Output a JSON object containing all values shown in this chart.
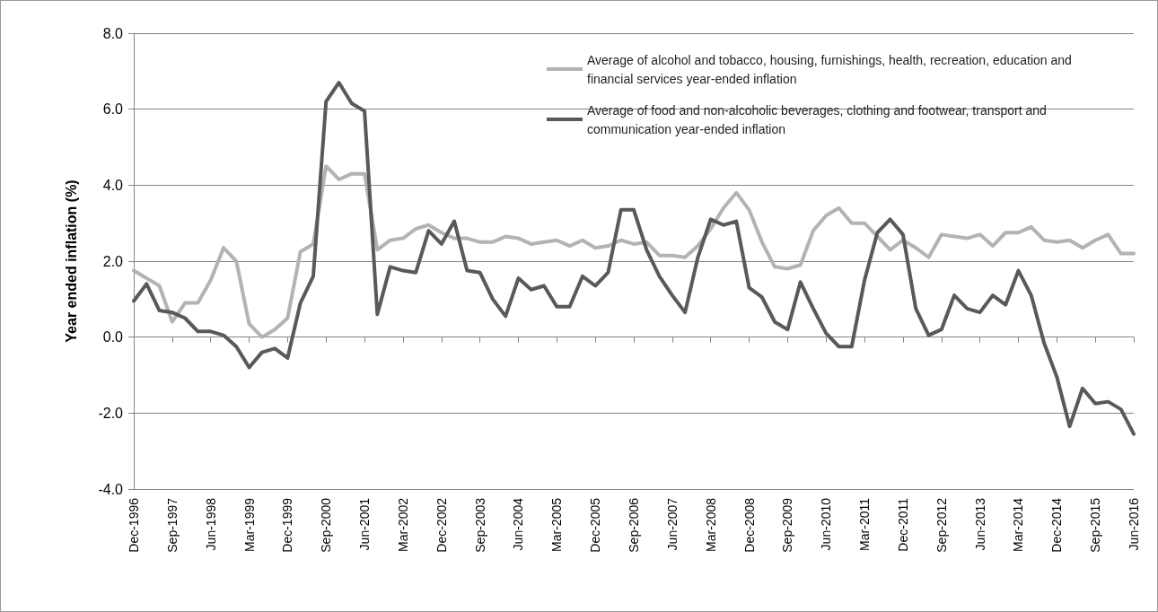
{
  "chart_data": {
    "type": "line",
    "ylabel": "Year ended inflation (%)",
    "categories": [
      "Dec-1996",
      null,
      null,
      "Sep-1997",
      null,
      null,
      "Jun-1998",
      null,
      null,
      "Mar-1999",
      null,
      null,
      "Dec-1999",
      null,
      null,
      "Sep-2000",
      null,
      null,
      "Jun-2001",
      null,
      null,
      "Mar-2002",
      null,
      null,
      "Dec-2002",
      null,
      null,
      "Sep-2003",
      null,
      null,
      "Jun-2004",
      null,
      null,
      "Mar-2005",
      null,
      null,
      "Dec-2005",
      null,
      null,
      "Sep-2006",
      null,
      null,
      "Jun-2007",
      null,
      null,
      "Mar-2008",
      null,
      null,
      "Dec-2008",
      null,
      null,
      "Sep-2009",
      null,
      null,
      "Jun-2010",
      null,
      null,
      "Mar-2011",
      null,
      null,
      "Dec-2011",
      null,
      null,
      "Sep-2012",
      null,
      null,
      "Jun-2013",
      null,
      null,
      "Mar-2014",
      null,
      null,
      "Dec-2014",
      null,
      null,
      "Sep-2015",
      null,
      null,
      "Jun-2016"
    ],
    "series": [
      {
        "name": "Average of alcohol and tobacco, housing, furnishings, health, recreation, education and financial services year-ended inflation",
        "color": "#b3b3b3",
        "values": [
          1.75,
          1.55,
          1.35,
          0.4,
          0.9,
          0.9,
          1.5,
          2.35,
          2.0,
          0.35,
          0.0,
          0.2,
          0.5,
          2.25,
          2.45,
          4.5,
          4.15,
          4.3,
          4.3,
          2.3,
          2.55,
          2.6,
          2.85,
          2.95,
          2.75,
          2.6,
          2.6,
          2.5,
          2.5,
          2.65,
          2.6,
          2.45,
          2.5,
          2.55,
          2.4,
          2.55,
          2.35,
          2.4,
          2.55,
          2.45,
          2.5,
          2.15,
          2.15,
          2.1,
          2.4,
          2.85,
          3.4,
          3.8,
          3.35,
          2.5,
          1.85,
          1.8,
          1.9,
          2.8,
          3.2,
          3.4,
          3.0,
          3.0,
          2.65,
          2.3,
          2.55,
          2.35,
          2.1,
          2.7,
          2.65,
          2.6,
          2.7,
          2.4,
          2.75,
          2.75,
          2.9,
          2.55,
          2.5,
          2.55,
          2.35,
          2.55,
          2.7,
          2.2,
          2.2
        ]
      },
      {
        "name": "Average of food and non-alcoholic beverages, clothing and footwear, transport and communication year-ended inflation",
        "color": "#595959",
        "values": [
          0.95,
          1.4,
          0.7,
          0.65,
          0.5,
          0.15,
          0.15,
          0.05,
          -0.25,
          -0.8,
          -0.4,
          -0.3,
          -0.55,
          0.9,
          1.6,
          6.2,
          6.7,
          6.15,
          5.95,
          0.6,
          1.85,
          1.75,
          1.7,
          2.8,
          2.45,
          3.05,
          1.75,
          1.7,
          1.0,
          0.55,
          1.55,
          1.25,
          1.35,
          0.8,
          0.8,
          1.6,
          1.35,
          1.7,
          3.35,
          3.35,
          2.3,
          1.6,
          1.1,
          0.65,
          2.1,
          3.1,
          2.95,
          3.05,
          1.3,
          1.05,
          0.4,
          0.2,
          1.45,
          0.75,
          0.1,
          -0.25,
          -0.25,
          1.5,
          2.75,
          3.1,
          2.7,
          0.75,
          0.05,
          0.2,
          1.1,
          0.75,
          0.65,
          1.1,
          0.85,
          1.75,
          1.1,
          -0.15,
          -1.05,
          -2.35,
          -1.35,
          -1.75,
          -1.7,
          -1.9,
          -2.55
        ]
      }
    ],
    "ylim": [
      -4,
      8
    ],
    "yticks": [
      {
        "value": -4,
        "label": "-4.0"
      },
      {
        "value": -2,
        "label": "-2.0"
      },
      {
        "value": 0,
        "label": "0.0"
      },
      {
        "value": 2,
        "label": "2.0"
      },
      {
        "value": 4,
        "label": "4.0"
      },
      {
        "value": 6,
        "label": "6.0"
      },
      {
        "value": 8,
        "label": "8.0"
      }
    ],
    "grid": "y",
    "legend": "top right",
    "marker": "none",
    "line_style": "solid"
  }
}
